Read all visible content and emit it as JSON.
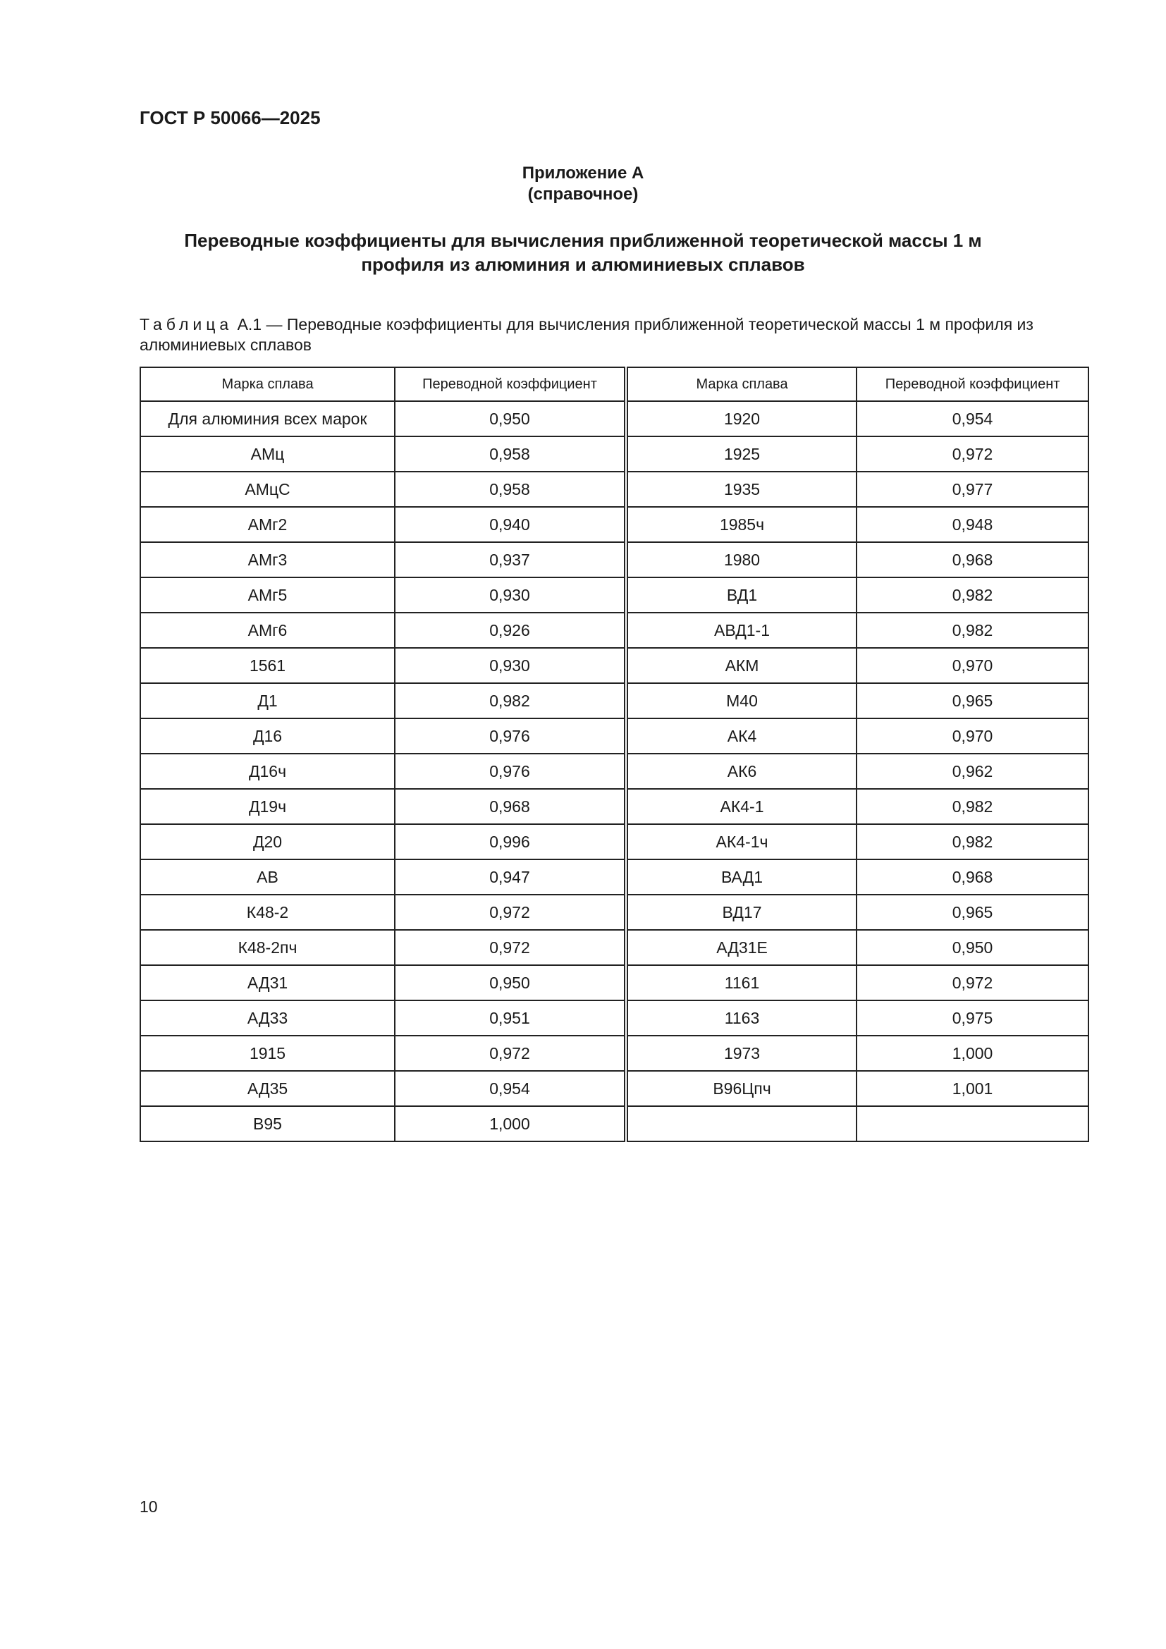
{
  "header": {
    "title": "ГОСТ Р 50066—2025"
  },
  "appendix": {
    "title": "Приложение А",
    "kind": "(справочное)"
  },
  "heading": {
    "lines": [
      "Переводные коэффициенты для вычисления приближенной теоретической массы 1 м",
      "профиля из алюминия и алюминиевых сплавов"
    ]
  },
  "caption": {
    "label": "Таблица",
    "text": "А.1 — Переводные коэффициенты для вычисления приближенной теоретической массы 1 м профиля из алюминиевых сплавов"
  },
  "table": {
    "headers": [
      "Марка сплава",
      "Переводной коэффициент",
      "Марка сплава",
      "Переводной коэффициент"
    ],
    "rows": [
      [
        "Для алюминия всех марок",
        "0,950",
        "1920",
        "0,954"
      ],
      [
        "АМц",
        "0,958",
        "1925",
        "0,972"
      ],
      [
        "АМцС",
        "0,958",
        "1935",
        "0,977"
      ],
      [
        "АМг2",
        "0,940",
        "1985ч",
        "0,948"
      ],
      [
        "АМг3",
        "0,937",
        "1980",
        "0,968"
      ],
      [
        "АМг5",
        "0,930",
        "ВД1",
        "0,982"
      ],
      [
        "АМг6",
        "0,926",
        "АВД1-1",
        "0,982"
      ],
      [
        "1561",
        "0,930",
        "АКМ",
        "0,970"
      ],
      [
        "Д1",
        "0,982",
        "М40",
        "0,965"
      ],
      [
        "Д16",
        "0,976",
        "АК4",
        "0,970"
      ],
      [
        "Д16ч",
        "0,976",
        "АК6",
        "0,962"
      ],
      [
        "Д19ч",
        "0,968",
        "АК4-1",
        "0,982"
      ],
      [
        "Д20",
        "0,996",
        "АК4-1ч",
        "0,982"
      ],
      [
        "АВ",
        "0,947",
        "ВАД1",
        "0,968"
      ],
      [
        "К48-2",
        "0,972",
        "ВД17",
        "0,965"
      ],
      [
        "К48-2пч",
        "0,972",
        "АД31Е",
        "0,950"
      ],
      [
        "АД31",
        "0,950",
        "1161",
        "0,972"
      ],
      [
        "АД33",
        "0,951",
        "1163",
        "0,975"
      ],
      [
        "1915",
        "0,972",
        "1973",
        "1,000"
      ],
      [
        "АД35",
        "0,954",
        "В96Цпч",
        "1,001"
      ],
      [
        "В95",
        "1,000"
      ]
    ]
  },
  "footer": {
    "page_number": "10"
  }
}
